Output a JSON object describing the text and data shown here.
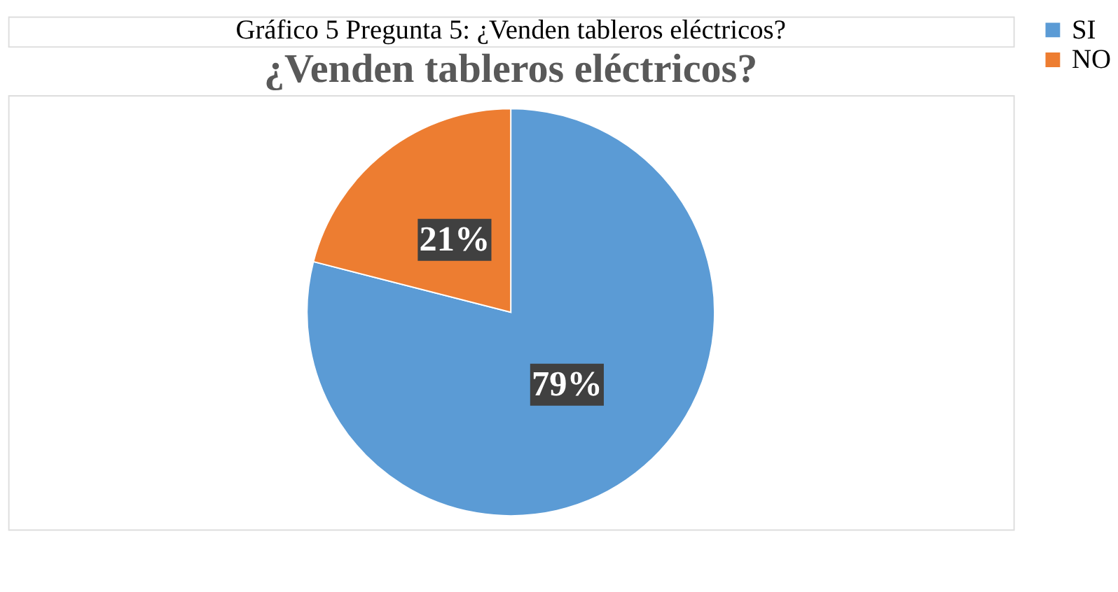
{
  "chart_data": {
    "type": "pie",
    "title": "¿Venden tableros eléctricos?",
    "annotations": [
      "Gráfico 5 Pregunta 5: ¿Venden tableros eléctricos?"
    ],
    "categories": [
      "SI",
      "NO"
    ],
    "values": [
      79,
      21
    ],
    "value_labels": [
      "79%",
      "21%"
    ],
    "colors": [
      "#5b9bd5",
      "#ed7d31"
    ],
    "legend": "right"
  }
}
